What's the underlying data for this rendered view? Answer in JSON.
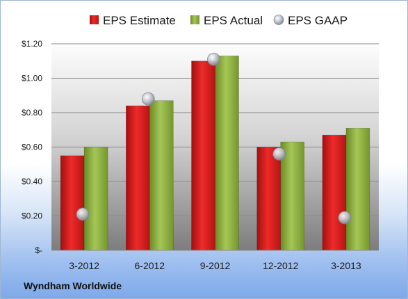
{
  "company": "Wyndham Worldwide",
  "colors": {
    "estimate": "#d91c1c",
    "actual": "#8fb33c",
    "gaap": "#b7bcc4",
    "plot_top": "#ffffff",
    "plot_bottom": "#7f7f7f"
  },
  "chart_data": {
    "type": "bar",
    "categories": [
      "3-2012",
      "6-2012",
      "9-2012",
      "12-2012",
      "3-2013"
    ],
    "series": [
      {
        "name": "EPS Estimate",
        "kind": "bar",
        "values": [
          0.55,
          0.84,
          1.1,
          0.6,
          0.67
        ]
      },
      {
        "name": "EPS Actual",
        "kind": "bar",
        "values": [
          0.6,
          0.87,
          1.13,
          0.63,
          0.71
        ]
      },
      {
        "name": "EPS GAAP",
        "kind": "marker",
        "values": [
          0.21,
          0.88,
          1.11,
          0.56,
          0.19
        ]
      }
    ],
    "y_ticks": [
      "$-",
      "$0.20",
      "$0.40",
      "$0.60",
      "$0.80",
      "$1.00",
      "$1.20"
    ],
    "ylim": [
      0,
      1.2
    ],
    "grid": true,
    "legend_position": "top"
  }
}
